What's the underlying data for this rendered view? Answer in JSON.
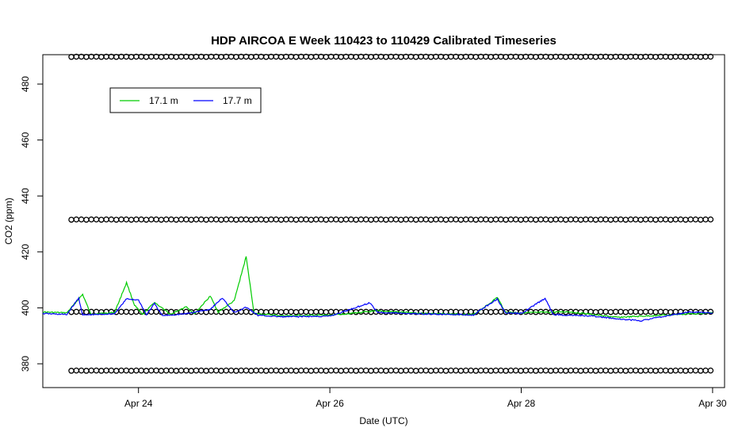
{
  "chart_data": {
    "type": "line",
    "title": "HDP AIRCOA E  Week 110423 to 110429  Calibrated Timeseries",
    "xlabel": "Date (UTC)",
    "ylabel": "CO2 (ppm)",
    "x_axis": {
      "kind": "date",
      "range": [
        "Apr 23 00:00",
        "Apr 30 03:00"
      ],
      "ticks": [
        {
          "date": "Apr 24",
          "label": "Apr 24"
        },
        {
          "date": "Apr 26",
          "label": "Apr 26"
        },
        {
          "date": "Apr 28",
          "label": "Apr 28"
        },
        {
          "date": "Apr 30",
          "label": "Apr 30"
        }
      ]
    },
    "y_axis": {
      "range": [
        371.5,
        490.5
      ],
      "ticks": [
        380,
        400,
        420,
        440,
        460,
        480
      ]
    },
    "grid": false,
    "legend": {
      "placement": "top-left",
      "entries": [
        {
          "label": "17.1 m",
          "color": "#00cc00"
        },
        {
          "label": "17.7 m",
          "color": "#0000ff"
        }
      ]
    },
    "calibration_levels": {
      "marker": "open-circle",
      "color": "#000000",
      "values": [
        377.6,
        398.6,
        431.6,
        489.8
      ],
      "x_range": [
        "Apr 23 00:00",
        "Apr 30 00:00"
      ]
    },
    "series": [
      {
        "name": "17.1 m",
        "color": "#00cc00",
        "points": [
          [
            "Apr 23 00:00",
            398.5
          ],
          [
            "Apr 23 06:00",
            398.2
          ],
          [
            "Apr 23 10:00",
            404.8
          ],
          [
            "Apr 23 12:00",
            397.8
          ],
          [
            "Apr 23 18:00",
            398.3
          ],
          [
            "Apr 23 21:00",
            409.0
          ],
          [
            "Apr 23 23:00",
            401.0
          ],
          [
            "Apr 24 01:00",
            397.5
          ],
          [
            "Apr 24 04:00",
            402.0
          ],
          [
            "Apr 24 08:00",
            397.6
          ],
          [
            "Apr 24 12:00",
            400.5
          ],
          [
            "Apr 24 14:00",
            397.8
          ],
          [
            "Apr 24 18:00",
            404.2
          ],
          [
            "Apr 24 20:00",
            398.5
          ],
          [
            "Apr 25 00:00",
            402.5
          ],
          [
            "Apr 25 03:00",
            418.3
          ],
          [
            "Apr 25 05:00",
            398.0
          ],
          [
            "Apr 25 12:00",
            397.2
          ],
          [
            "Apr 26 00:00",
            397.4
          ],
          [
            "Apr 26 12:00",
            398.9
          ],
          [
            "Apr 27 00:00",
            398.0
          ],
          [
            "Apr 27 12:00",
            397.6
          ],
          [
            "Apr 27 16:00",
            401.5
          ],
          [
            "Apr 27 18:00",
            403.8
          ],
          [
            "Apr 27 20:00",
            398.5
          ],
          [
            "Apr 28 00:00",
            398.2
          ],
          [
            "Apr 28 12:00",
            398.6
          ],
          [
            "Apr 29 00:00",
            396.6
          ],
          [
            "Apr 29 12:00",
            397.4
          ],
          [
            "Apr 30 00:00",
            398.3
          ]
        ]
      },
      {
        "name": "17.7 m",
        "color": "#0000ff",
        "points": [
          [
            "Apr 23 00:00",
            398.0
          ],
          [
            "Apr 23 06:00",
            397.6
          ],
          [
            "Apr 23 09:00",
            403.5
          ],
          [
            "Apr 23 10:00",
            397.4
          ],
          [
            "Apr 23 18:00",
            397.9
          ],
          [
            "Apr 23 21:00",
            403.2
          ],
          [
            "Apr 24 00:00",
            402.8
          ],
          [
            "Apr 24 02:00",
            397.5
          ],
          [
            "Apr 24 04:00",
            401.5
          ],
          [
            "Apr 24 06:00",
            397.2
          ],
          [
            "Apr 24 12:00",
            397.9
          ],
          [
            "Apr 24 18:00",
            399.5
          ],
          [
            "Apr 24 21:00",
            403.5
          ],
          [
            "Apr 25 00:00",
            398.4
          ],
          [
            "Apr 25 03:00",
            400.2
          ],
          [
            "Apr 25 06:00",
            397.3
          ],
          [
            "Apr 25 12:00",
            396.8
          ],
          [
            "Apr 26 00:00",
            397.0
          ],
          [
            "Apr 26 10:00",
            401.8
          ],
          [
            "Apr 26 12:00",
            398.4
          ],
          [
            "Apr 27 00:00",
            397.8
          ],
          [
            "Apr 27 12:00",
            397.5
          ],
          [
            "Apr 27 18:00",
            403.2
          ],
          [
            "Apr 27 20:00",
            398.2
          ],
          [
            "Apr 28 00:00",
            398.0
          ],
          [
            "Apr 28 06:00",
            403.4
          ],
          [
            "Apr 28 08:00",
            397.6
          ],
          [
            "Apr 28 18:00",
            397.0
          ],
          [
            "Apr 29 00:00",
            396.1
          ],
          [
            "Apr 29 06:00",
            395.4
          ],
          [
            "Apr 29 12:00",
            397.0
          ],
          [
            "Apr 29 18:00",
            398.5
          ],
          [
            "Apr 30 00:00",
            398.2
          ]
        ]
      }
    ]
  }
}
